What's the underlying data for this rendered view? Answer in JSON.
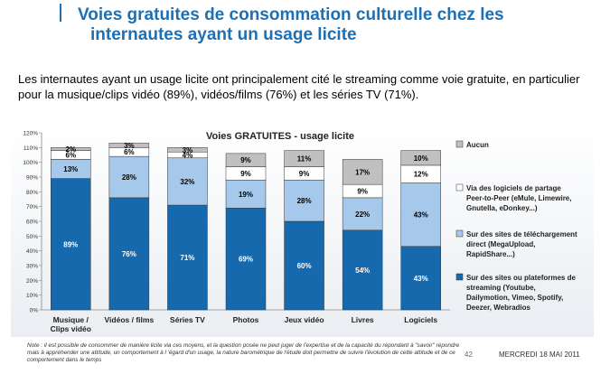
{
  "header": {
    "title_line1": "Voies gratuites de consommation culturelle chez les",
    "title_line2": "internautes ayant un usage licite"
  },
  "intro_text": "Les internautes ayant un usage licite ont principalement cité le streaming comme voie gratuite, en particulier pour la musique/clips vidéo (89%), vidéos/films (76%) et les séries TV (71%).",
  "footer": {
    "note": "Note : il est possible de consommer de manière licite via ces moyens, et la question posée ne peut juger de l'expertise et de la capacité du répondant à \"savoir\" répondre mais à appréhender une attitude, un comportement à l 'égard d'un usage, la nature barométrique de l'étude doit permettre de suivre l'évolution de cette attitude et de ce comportement dans le temps",
    "page_number": "42",
    "date": "MERCREDI 18 MAI 2011"
  },
  "chart_data": {
    "type": "bar",
    "stacked": true,
    "title": "Voies GRATUITES - usage licite",
    "categories": [
      "Musique / Clips vidéo",
      "Vidéos / films",
      "Séries TV",
      "Photos",
      "Jeux vidéo",
      "Livres",
      "Logiciels"
    ],
    "category_lines": [
      [
        "Musique /",
        "Clips vidéo"
      ],
      [
        "Vidéos / films"
      ],
      [
        "Séries TV"
      ],
      [
        "Photos"
      ],
      [
        "Jeux vidéo"
      ],
      [
        "Livres"
      ],
      [
        "Logiciels"
      ]
    ],
    "series": [
      {
        "name": "Sur des sites ou plateformes de streaming (Youtube, Dailymotion, Vimeo, Spotify, Deezer, Webradios",
        "legend_lines": [
          "Sur des sites ou plateformes de",
          "streaming (Youtube,",
          "Dailymotion, Vimeo, Spotify,",
          "Deezer, Webradios"
        ],
        "color": "#1769ad",
        "label_color": "#ffffff",
        "values": [
          89,
          76,
          71,
          69,
          60,
          54,
          43
        ]
      },
      {
        "name": "Sur des sites de téléchargement direct (MegaUpload, RapidShare...)",
        "legend_lines": [
          "Sur des sites de téléchargement",
          "direct (MegaUpload,",
          "RapidShare...)"
        ],
        "color": "#a6c8ea",
        "label_color": "#000000",
        "values": [
          13,
          28,
          32,
          19,
          28,
          22,
          43
        ]
      },
      {
        "name": "Via des logiciels de partage Peer-to-Peer (eMule, Limewire, Gnutella, eDonkey...)",
        "legend_lines": [
          "Via des logiciels de partage",
          "Peer-to-Peer (eMule, Limewire,",
          "Gnutella, eDonkey...)"
        ],
        "color": "#ffffff",
        "label_color": "#000000",
        "values": [
          6,
          6,
          4,
          9,
          9,
          9,
          12
        ]
      },
      {
        "name": "Aucun",
        "legend_lines": [
          "Aucun"
        ],
        "color": "#c0c0c0",
        "label_color": "#000000",
        "values": [
          2,
          3,
          3,
          9,
          11,
          17,
          10
        ]
      }
    ],
    "y_ticks": [
      "0%",
      "10%",
      "20%",
      "30%",
      "40%",
      "50%",
      "60%",
      "70%",
      "80%",
      "90%",
      "100%",
      "110%",
      "120%"
    ],
    "ylim": [
      0,
      120
    ],
    "y_unit": "%",
    "grid": false,
    "legend_position": "right"
  }
}
